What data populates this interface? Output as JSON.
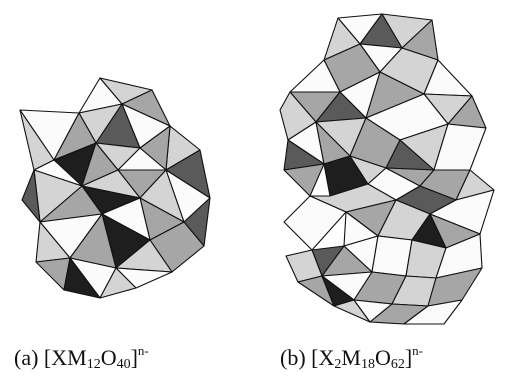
{
  "colors": {
    "white_face": "#fbfbfb",
    "light_face": "#d4d4d4",
    "mid_face": "#a6a6a6",
    "dark_face": "#5a5a5a",
    "black_face": "#1e1e1e",
    "edge": "#111111"
  },
  "panels": [
    {
      "name": "panel-a",
      "prefix": "(a) [",
      "formula_parts": [
        {
          "text": "XM",
          "style": "normal"
        },
        {
          "text": "12",
          "style": "sub"
        },
        {
          "text": "O",
          "style": "normal"
        },
        {
          "text": "40",
          "style": "sub"
        },
        {
          "text": "]",
          "style": "normal"
        },
        {
          "text": "n-",
          "style": "sup"
        }
      ]
    },
    {
      "name": "panel-b",
      "prefix": "(b) [",
      "formula_parts": [
        {
          "text": "X",
          "style": "normal"
        },
        {
          "text": "2",
          "style": "sub"
        },
        {
          "text": "M",
          "style": "normal"
        },
        {
          "text": "18",
          "style": "sub"
        },
        {
          "text": "O",
          "style": "normal"
        },
        {
          "text": "62",
          "style": "sub"
        },
        {
          "text": "]",
          "style": "normal"
        },
        {
          "text": "n-",
          "style": "sup"
        }
      ]
    }
  ]
}
